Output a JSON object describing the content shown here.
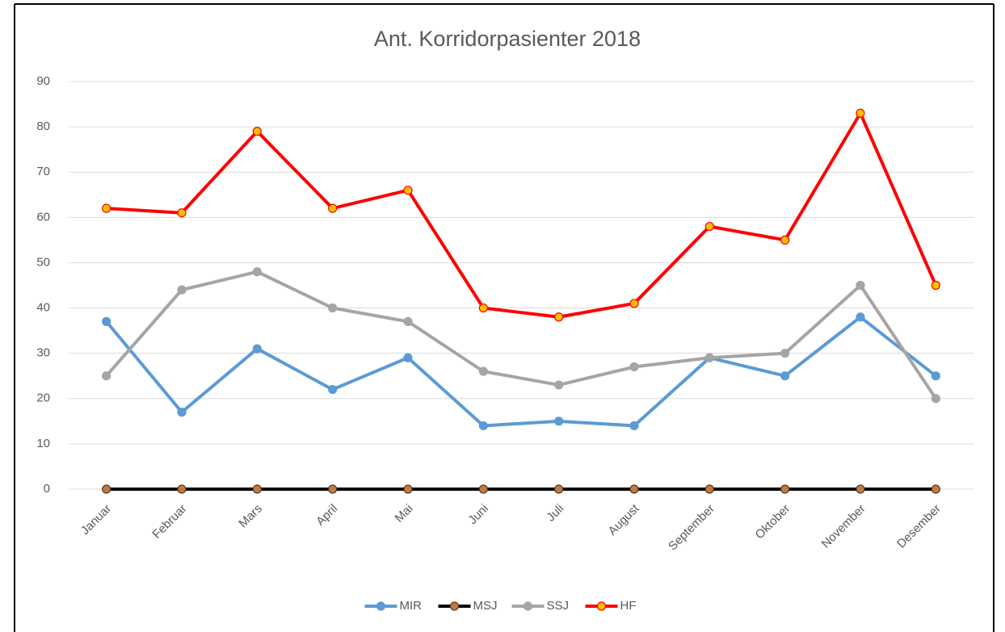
{
  "chart_data": {
    "type": "line",
    "title": "Ant. Korridorpasienter 2018",
    "categories": [
      "Januar",
      "Februar",
      "Mars",
      "April",
      "Mai",
      "Juni",
      "Juli",
      "August",
      "September",
      "Oktober",
      "November",
      "Desember"
    ],
    "series": [
      {
        "name": "MIR",
        "color": "#5b9bd5",
        "marker_color": "#5b9bd5",
        "values": [
          37,
          17,
          31,
          22,
          29,
          14,
          15,
          14,
          29,
          25,
          38,
          25
        ]
      },
      {
        "name": "MSJ",
        "color": "#000000",
        "marker_color": "#c07a45",
        "values": [
          0,
          0,
          0,
          0,
          0,
          0,
          0,
          0,
          0,
          0,
          0,
          0
        ]
      },
      {
        "name": "SSJ",
        "color": "#a5a5a5",
        "marker_color": "#a5a5a5",
        "values": [
          25,
          44,
          48,
          40,
          37,
          26,
          23,
          27,
          29,
          30,
          45,
          20
        ]
      },
      {
        "name": "HF",
        "color": "#ff0000",
        "marker_color": "#ffc000",
        "values": [
          62,
          61,
          79,
          62,
          66,
          40,
          38,
          41,
          58,
          55,
          83,
          45
        ]
      }
    ],
    "ylim": [
      0,
      90
    ],
    "yticks": [
      0,
      10,
      20,
      30,
      40,
      50,
      60,
      70,
      80,
      90
    ],
    "grid": true,
    "legend": "bottom"
  }
}
